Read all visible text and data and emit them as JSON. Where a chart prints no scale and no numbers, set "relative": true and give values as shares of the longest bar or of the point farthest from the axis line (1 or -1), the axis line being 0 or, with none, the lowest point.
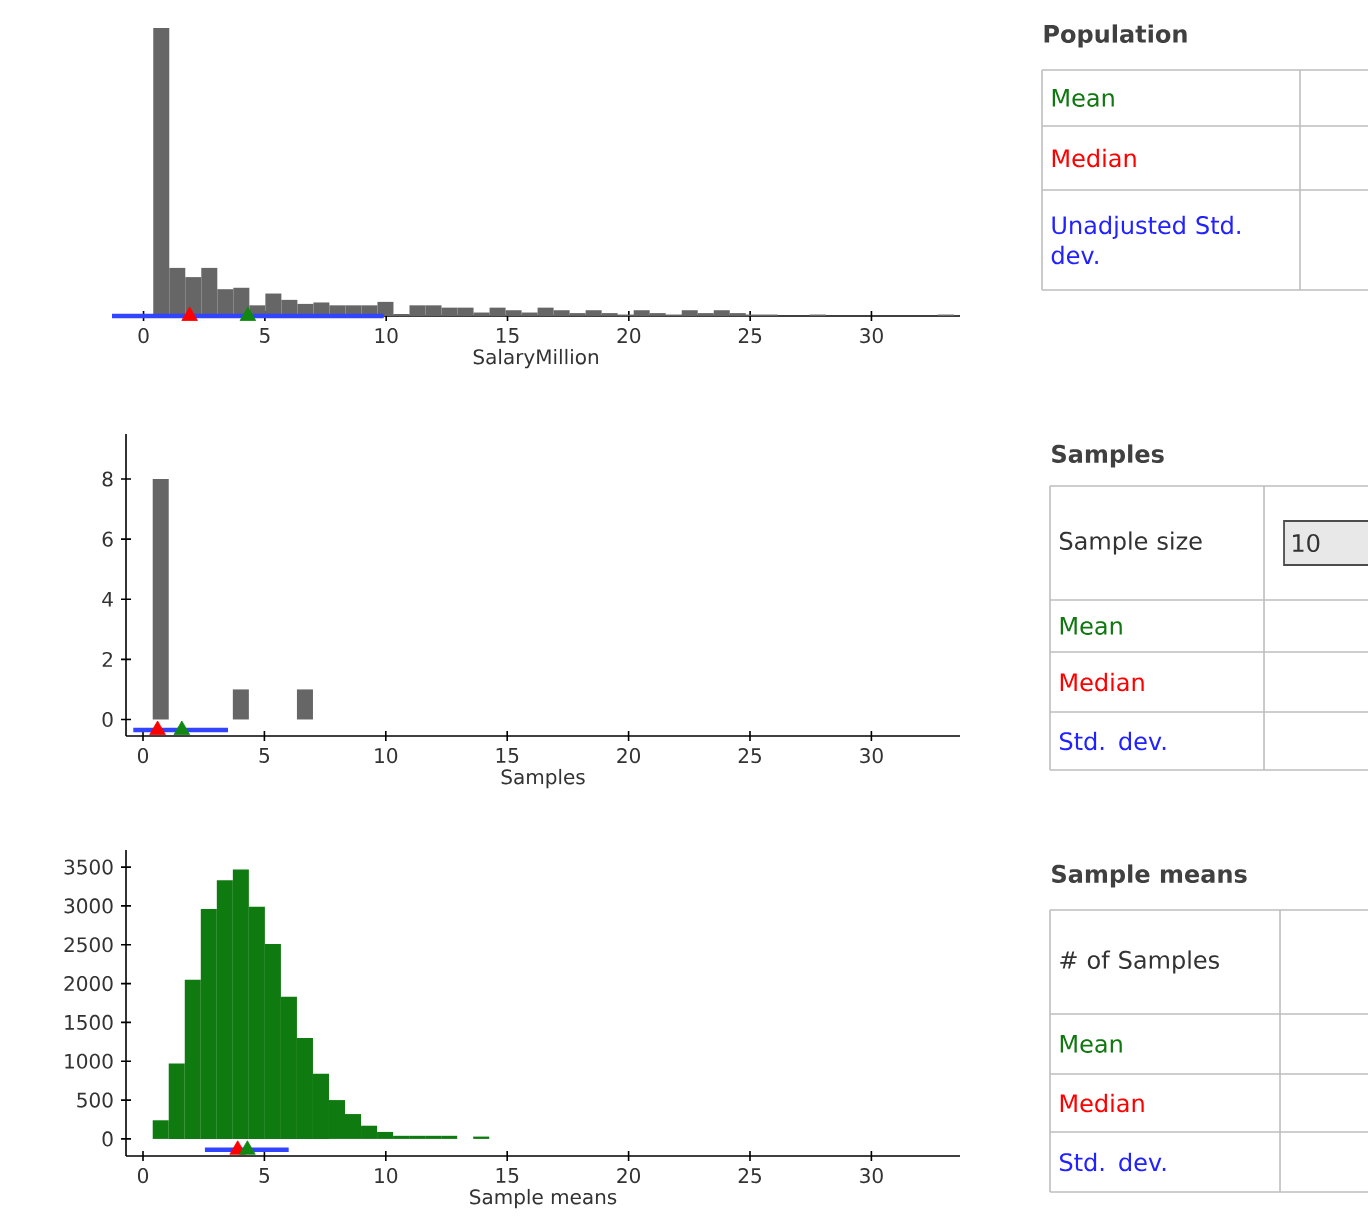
{
  "chart_data": [
    {
      "type": "bar",
      "relative": true,
      "xlabel": "SalaryMillion",
      "color": "#666666",
      "x": [
        0.73,
        1.39,
        2.05,
        2.71,
        3.37,
        4.03,
        4.69,
        5.35,
        6.01,
        6.67,
        7.33,
        7.99,
        8.65,
        9.31,
        9.97,
        10.63,
        11.29,
        11.95,
        12.61,
        13.27,
        13.93,
        14.59,
        15.25,
        15.91,
        16.57,
        17.23,
        17.89,
        18.55,
        19.21,
        19.87,
        20.53,
        21.19,
        21.85,
        22.51,
        23.17,
        23.83,
        24.49,
        25.15,
        25.81,
        26.47,
        27.13,
        27.79,
        28.45,
        29.11,
        29.77,
        30.43,
        31.09,
        31.75,
        32.41,
        33.07
      ],
      "values": [
        1,
        0.167,
        0.135,
        0.167,
        0.093,
        0.098,
        0.037,
        0.078,
        0.056,
        0.042,
        0.047,
        0.037,
        0.037,
        0.037,
        0.049,
        0.007,
        0.037,
        0.037,
        0.029,
        0.029,
        0.012,
        0.029,
        0.02,
        0.012,
        0.029,
        0.02,
        0.01,
        0.02,
        0.01,
        0.005,
        0.02,
        0.01,
        0.005,
        0.02,
        0.01,
        0.02,
        0.01,
        0.005,
        0.005,
        null,
        null,
        0.005,
        null,
        null,
        null,
        null,
        null,
        null,
        null,
        0.005
      ],
      "xlim": [
        -1.3,
        33.65
      ],
      "xticks": [
        0,
        5,
        10,
        15,
        20,
        25,
        30
      ],
      "series": [
        {
          "type": "line",
          "color": "#3344ff",
          "x": [
            -1.3,
            9.9
          ],
          "values": [
            0,
            0
          ]
        },
        {
          "type": "scatter",
          "marker": "triangle",
          "color": "#ff0000",
          "x": [
            1.9
          ],
          "values": [
            0
          ]
        },
        {
          "type": "scatter",
          "marker": "triangle",
          "color": "#118811",
          "x": [
            4.3
          ],
          "values": [
            0
          ]
        }
      ]
    },
    {
      "type": "other",
      "title": "Population",
      "annotations": [
        "Mean",
        "Median",
        "Unadjusted Std. dev."
      ]
    },
    {
      "type": "histogram",
      "xlabel": "Samples",
      "color": "#666666",
      "bins": [
        0.4,
        1.06,
        1.72,
        2.38,
        3.04,
        3.7,
        4.36,
        5.02,
        5.68,
        6.34,
        7
      ],
      "values": [
        8,
        0,
        0,
        0,
        0,
        1,
        0,
        0,
        0,
        1
      ],
      "xlim": [
        -0.7,
        33.65
      ],
      "xticks": [
        0,
        5,
        10,
        15,
        20,
        25,
        30
      ],
      "ylim": [
        -0.55,
        9.5
      ],
      "yticks": [
        0,
        2,
        4,
        6,
        8
      ],
      "series": [
        {
          "type": "line",
          "color": "#3344ff",
          "x": [
            -0.4,
            3.5
          ],
          "values": [
            -0.35,
            -0.35
          ]
        },
        {
          "type": "scatter",
          "marker": "triangle",
          "color": "#ff0000",
          "x": [
            0.6
          ],
          "values": [
            -0.35
          ]
        },
        {
          "type": "scatter",
          "marker": "triangle",
          "color": "#118811",
          "x": [
            1.6
          ],
          "values": [
            -0.35
          ]
        }
      ]
    },
    {
      "type": "other",
      "title": "Samples",
      "annotations": [
        "Sample size",
        "10",
        "Mean",
        "Median",
        "Std. dev."
      ]
    },
    {
      "type": "histogram",
      "xlabel": "Sample means",
      "color": "#0f7a0f",
      "bins": [
        0.4,
        1.06,
        1.72,
        2.38,
        3.04,
        3.7,
        4.36,
        5.02,
        5.68,
        6.34,
        7,
        7.66,
        8.32,
        8.98,
        9.64,
        10.3,
        10.96,
        11.62,
        12.28,
        12.94,
        13.6,
        14.26
      ],
      "values": [
        240,
        970,
        2050,
        2960,
        3330,
        3470,
        2990,
        2510,
        1830,
        1300,
        840,
        500,
        320,
        170,
        90,
        40,
        40,
        40,
        40,
        0,
        30
      ],
      "xlim": [
        -0.7,
        33.65
      ],
      "xticks": [
        0,
        5,
        10,
        15,
        20,
        25,
        30
      ],
      "ylim": [
        -220,
        3720
      ],
      "yticks": [
        0,
        500,
        1000,
        1500,
        2000,
        2500,
        3000,
        3500
      ],
      "series": [
        {
          "type": "line",
          "color": "#3344ff",
          "x": [
            2.55,
            6.0
          ],
          "values": [
            -140,
            -140
          ]
        },
        {
          "type": "scatter",
          "marker": "triangle",
          "color": "#ff0000",
          "x": [
            3.9
          ],
          "values": [
            -140
          ]
        },
        {
          "type": "scatter",
          "marker": "triangle",
          "color": "#118811",
          "x": [
            4.3
          ],
          "values": [
            -140
          ]
        }
      ]
    },
    {
      "type": "other",
      "title": "Sample means",
      "annotations": [
        "# of Samples",
        "Mean",
        "Median",
        "Std. dev."
      ]
    }
  ]
}
